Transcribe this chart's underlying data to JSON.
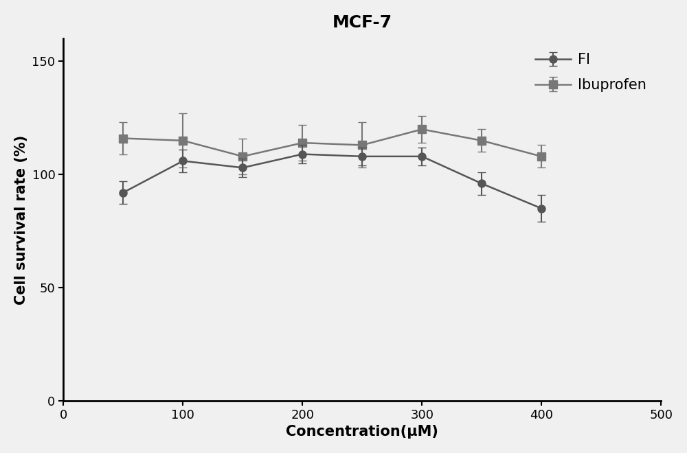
{
  "title": "MCF-7",
  "xlabel": "Concentration(μM)",
  "ylabel": "Cell survival rate (%)",
  "x": [
    50,
    100,
    150,
    200,
    250,
    300,
    350,
    400
  ],
  "FI_y": [
    92,
    106,
    103,
    109,
    108,
    108,
    96,
    85
  ],
  "FI_yerr": [
    5,
    5,
    4,
    4,
    4,
    4,
    5,
    6
  ],
  "Ibuprofen_y": [
    116,
    115,
    108,
    114,
    113,
    120,
    115,
    108
  ],
  "Ibuprofen_yerr": [
    7,
    12,
    8,
    8,
    10,
    6,
    5,
    5
  ],
  "FI_color": "#555555",
  "Ibuprofen_color": "#777777",
  "marker_FI": "o",
  "marker_Ibuprofen": "s",
  "xlim": [
    0,
    500
  ],
  "ylim": [
    0,
    160
  ],
  "xticks": [
    0,
    100,
    200,
    300,
    400,
    500
  ],
  "yticks": [
    0,
    50,
    100,
    150
  ],
  "title_fontsize": 18,
  "axis_label_fontsize": 15,
  "tick_fontsize": 13,
  "legend_fontsize": 15,
  "markersize": 8,
  "linewidth": 1.8,
  "capsize": 4,
  "elinewidth": 1.5,
  "spine_linewidth": 2.0,
  "bg_color": "#f0f0f0"
}
